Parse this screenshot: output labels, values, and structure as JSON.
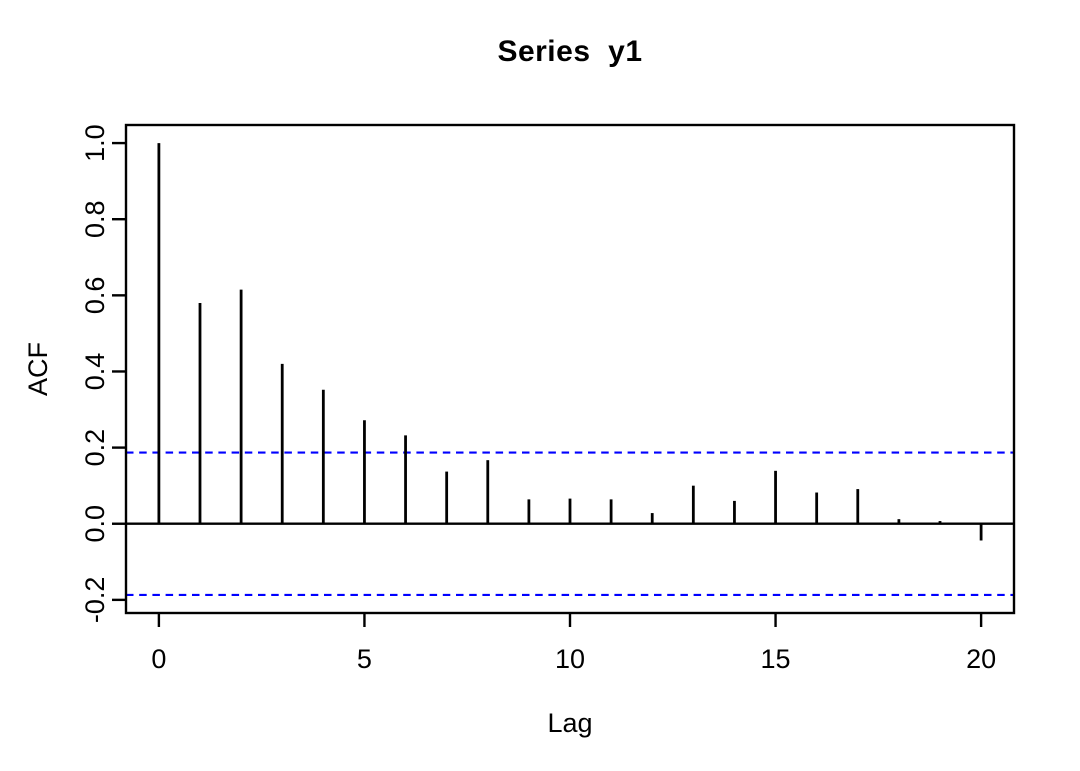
{
  "chart_data": {
    "type": "bar",
    "subtype": "acf-stem-plot",
    "title": "Series  y1",
    "xlabel": "Lag",
    "ylabel": "ACF",
    "x": [
      0,
      1,
      2,
      3,
      4,
      5,
      6,
      7,
      8,
      9,
      10,
      11,
      12,
      13,
      14,
      15,
      16,
      17,
      18,
      19,
      20
    ],
    "values": [
      1.0,
      0.58,
      0.615,
      0.42,
      0.352,
      0.272,
      0.232,
      0.137,
      0.167,
      0.064,
      0.066,
      0.064,
      0.028,
      0.1,
      0.06,
      0.139,
      0.082,
      0.091,
      0.012,
      0.007,
      -0.044
    ],
    "confidence_interval": 0.187,
    "xticks": [
      0,
      5,
      10,
      15,
      20
    ],
    "xtick_labels": [
      "0",
      "5",
      "10",
      "15",
      "20"
    ],
    "yticks": [
      1.0,
      0.8,
      0.6,
      0.4,
      0.2,
      0.0,
      -0.2
    ],
    "ytick_labels": [
      "1.0",
      "0.8",
      "0.6",
      "0.4",
      "0.2",
      "0.0",
      "-0.2"
    ],
    "xlim": [
      -0.8,
      20.8
    ],
    "ylim": [
      -0.2345,
      1.0475
    ],
    "grid": false,
    "legend": null,
    "colors": {
      "bar": "#000000",
      "axis": "#000000",
      "zero_line": "#000000",
      "ci_line": "#0000ff",
      "background": "#ffffff"
    }
  }
}
